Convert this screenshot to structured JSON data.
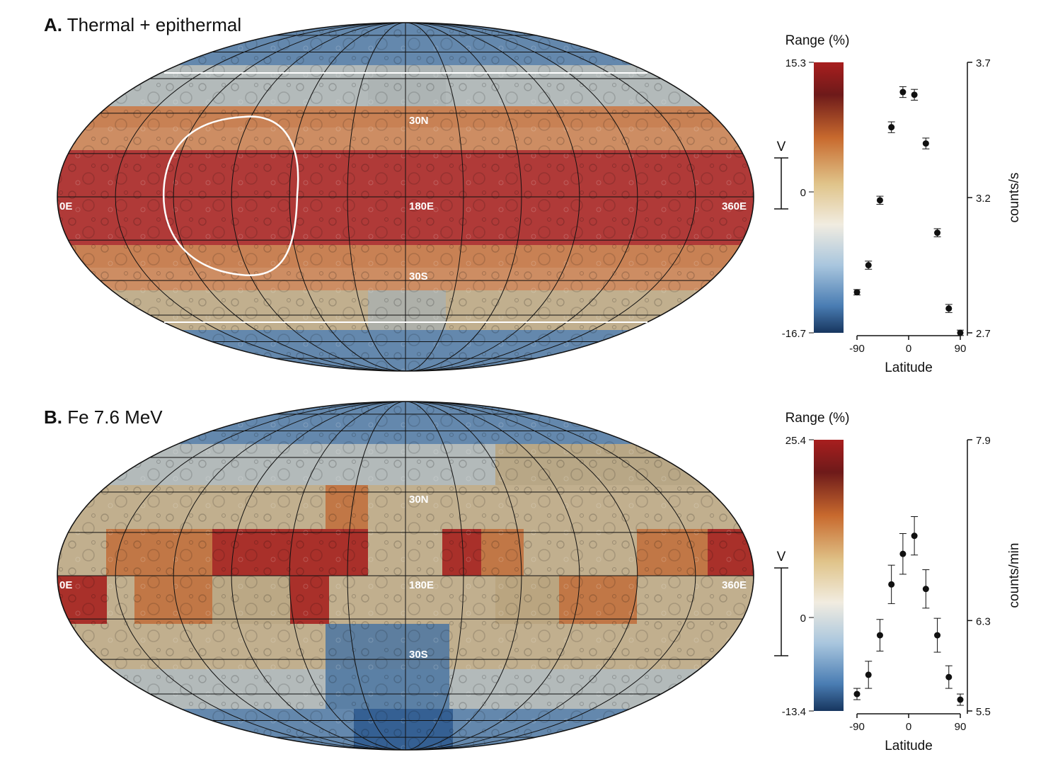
{
  "panels": [
    {
      "letter": "A.",
      "title": "Thermal + epithermal",
      "map_labels": {
        "west": "0E",
        "center": "180E",
        "east": "360E",
        "north": "30N",
        "south": "30S"
      },
      "colorbar": {
        "label": "Range (%)",
        "max": "15.3",
        "zero": "0",
        "min": "-16.7",
        "v_label": "V"
      }
    },
    {
      "letter": "B.",
      "title": "Fe 7.6 MeV",
      "map_labels": {
        "west": "0E",
        "center": "180E",
        "east": "360E",
        "north": "30N",
        "south": "30S"
      },
      "colorbar": {
        "label": "Range (%)",
        "max": "25.4",
        "zero": "0",
        "min": "-13.4",
        "v_label": "V"
      }
    }
  ],
  "colors": {
    "red": "#a51f1c",
    "orange": "#c0703c",
    "tan": "#b8a47e",
    "grey": "#a9b0b0",
    "blue": "#4f77a2",
    "deepblue": "#2f5a8f"
  },
  "chart_data": [
    {
      "type": "scatter",
      "title": "",
      "xlabel": "Latitude",
      "ylabel": "counts/s",
      "xlim": [
        -90,
        90
      ],
      "ylim": [
        2.7,
        3.7
      ],
      "xticks": [
        "-90",
        "0",
        "90"
      ],
      "yticks": [
        "2.7",
        "3.2",
        "3.7"
      ],
      "series": [
        {
          "x": [
            -90,
            -70,
            -50,
            -30,
            -10,
            10,
            30,
            50,
            70,
            90
          ],
          "y": [
            2.85,
            2.95,
            3.19,
            3.46,
            3.59,
            3.58,
            3.4,
            3.07,
            2.79,
            2.7
          ],
          "err": [
            0.01,
            0.015,
            0.015,
            0.02,
            0.02,
            0.02,
            0.02,
            0.015,
            0.015,
            0.01
          ]
        }
      ]
    },
    {
      "type": "scatter",
      "title": "",
      "xlabel": "Latitude",
      "ylabel": "counts/min",
      "xlim": [
        -90,
        90
      ],
      "ylim": [
        5.5,
        7.9
      ],
      "xticks": [
        "-90",
        "0",
        "90"
      ],
      "yticks": [
        "5.5",
        "6.3",
        "7.9"
      ],
      "series": [
        {
          "x": [
            -90,
            -70,
            -50,
            -30,
            -10,
            10,
            30,
            50,
            70,
            90
          ],
          "y": [
            5.65,
            5.82,
            6.17,
            6.62,
            6.89,
            7.05,
            6.58,
            6.17,
            5.8,
            5.6
          ],
          "err": [
            0.05,
            0.12,
            0.14,
            0.17,
            0.18,
            0.17,
            0.17,
            0.15,
            0.1,
            0.05
          ]
        }
      ]
    }
  ]
}
